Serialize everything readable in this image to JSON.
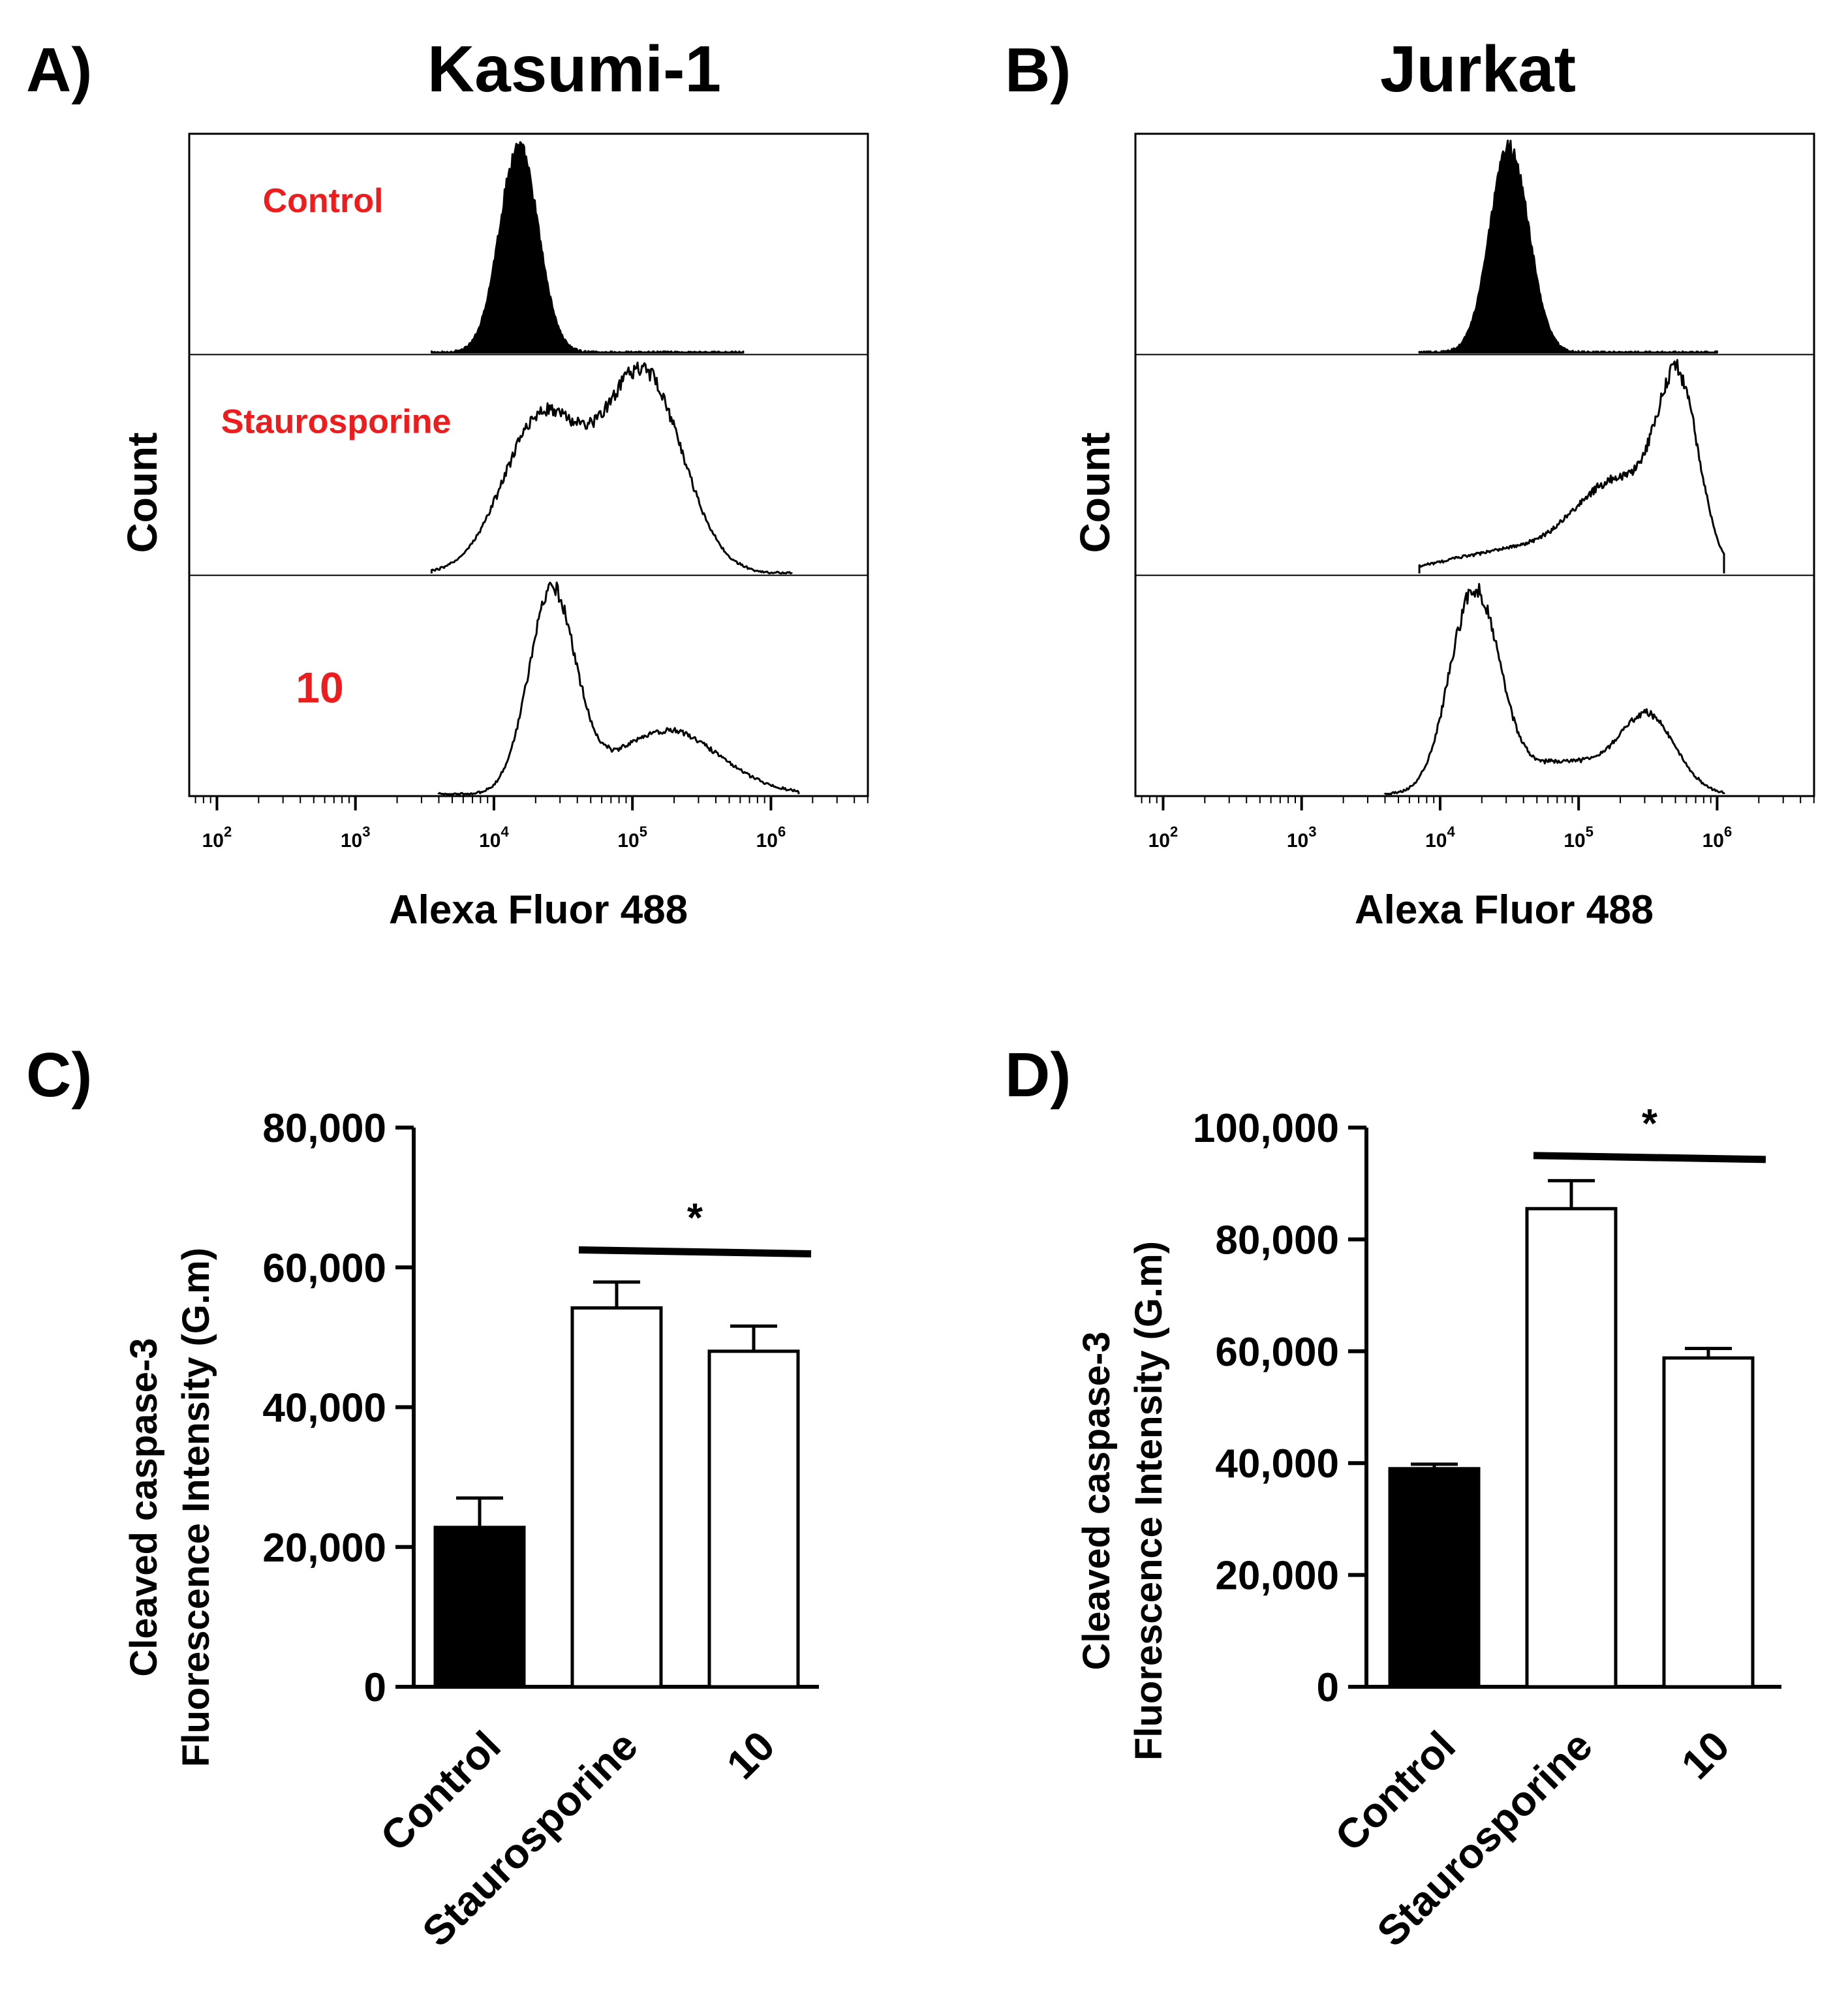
{
  "chart_data": [
    {
      "type": "histogram",
      "panel_label": "A)",
      "title": "Kasumi-1",
      "xlabel": "Alexa Fluor 488",
      "ylabel": "Count",
      "x_scale": "log",
      "x_ticks": [
        {
          "base": "10",
          "exp": "2"
        },
        {
          "base": "10",
          "exp": "3"
        },
        {
          "base": "10",
          "exp": "4"
        },
        {
          "base": "10",
          "exp": "5"
        },
        {
          "base": "10",
          "exp": "6"
        }
      ],
      "label_color": "#ee1c1c",
      "tracks": [
        {
          "label": "Control",
          "filled": true,
          "components": [
            {
              "mu": 4.18,
              "sigma": 0.14,
              "w": 1.0
            }
          ],
          "xmin": 3.55,
          "xmax": 5.8
        },
        {
          "label": "Staurosporine",
          "filled": false,
          "components": [
            {
              "mu": 4.35,
              "sigma": 0.28,
              "w": 0.72
            },
            {
              "mu": 5.08,
              "sigma": 0.28,
              "w": 0.92
            }
          ],
          "xmin": 3.55,
          "xmax": 6.15
        },
        {
          "label": "10",
          "filled": false,
          "components": [
            {
              "mu": 4.42,
              "sigma": 0.17,
              "w": 1.0
            },
            {
              "mu": 5.25,
              "sigma": 0.38,
              "w": 0.32
            }
          ],
          "xmin": 3.6,
          "xmax": 6.2
        }
      ]
    },
    {
      "type": "histogram",
      "panel_label": "B)",
      "title": "Jurkat",
      "xlabel": "Alexa Fluor 488",
      "ylabel": "Count",
      "x_scale": "log",
      "x_ticks": [
        {
          "base": "10",
          "exp": "2"
        },
        {
          "base": "10",
          "exp": "3"
        },
        {
          "base": "10",
          "exp": "4"
        },
        {
          "base": "10",
          "exp": "5"
        },
        {
          "base": "10",
          "exp": "6"
        }
      ],
      "tracks": [
        {
          "label": "",
          "filled": true,
          "components": [
            {
              "mu": 4.5,
              "sigma": 0.14,
              "w": 1.0
            }
          ],
          "xmin": 3.85,
          "xmax": 6.0
        },
        {
          "label": "",
          "filled": false,
          "components": [
            {
              "mu": 5.72,
              "sigma": 0.15,
              "w": 0.85
            },
            {
              "mu": 5.3,
              "sigma": 0.3,
              "w": 0.42
            },
            {
              "mu": 4.6,
              "sigma": 0.5,
              "w": 0.12
            }
          ],
          "xmin": 3.85,
          "xmax": 6.05
        },
        {
          "label": "",
          "filled": false,
          "components": [
            {
              "mu": 4.25,
              "sigma": 0.18,
              "w": 1.0
            },
            {
              "mu": 5.5,
              "sigma": 0.2,
              "w": 0.38
            },
            {
              "mu": 4.9,
              "sigma": 0.3,
              "w": 0.16
            }
          ],
          "xmin": 3.6,
          "xmax": 6.05
        }
      ]
    },
    {
      "type": "bar",
      "panel_label": "C)",
      "ylabel_line1": "Cleaved caspase-3",
      "ylabel_line2": "Fluorescence Intensity (G.m)",
      "categories": [
        "Control",
        "Staurosporine",
        "10"
      ],
      "values": [
        22800,
        54200,
        48000
      ],
      "errors": [
        4200,
        3700,
        3600
      ],
      "fills": [
        "#000000",
        "#ffffff",
        "#ffffff"
      ],
      "ylim": [
        0,
        80000
      ],
      "y_ticks": [
        0,
        20000,
        40000,
        60000,
        80000
      ],
      "y_tick_labels": [
        "0",
        "20,000",
        "40,000",
        "60,000",
        "80,000"
      ],
      "significance": {
        "label": "*",
        "from": 1,
        "to": 2,
        "y": 62500
      }
    },
    {
      "type": "bar",
      "panel_label": "D)",
      "ylabel_line1": "Cleaved caspase-3",
      "ylabel_line2": "Fluorescence Intensity (G.m)",
      "categories": [
        "Control",
        "Staurosporine",
        "10"
      ],
      "values": [
        39000,
        85500,
        58800
      ],
      "errors": [
        800,
        5000,
        1700
      ],
      "fills": [
        "#000000",
        "#ffffff",
        "#ffffff"
      ],
      "ylim": [
        0,
        100000
      ],
      "y_ticks": [
        0,
        20000,
        40000,
        60000,
        80000,
        100000
      ],
      "y_tick_labels": [
        "0",
        "20,000",
        "40,000",
        "60,000",
        "80,000",
        "100,000"
      ],
      "significance": {
        "label": "*",
        "from": 1,
        "to": 2,
        "y": 95000
      }
    }
  ]
}
